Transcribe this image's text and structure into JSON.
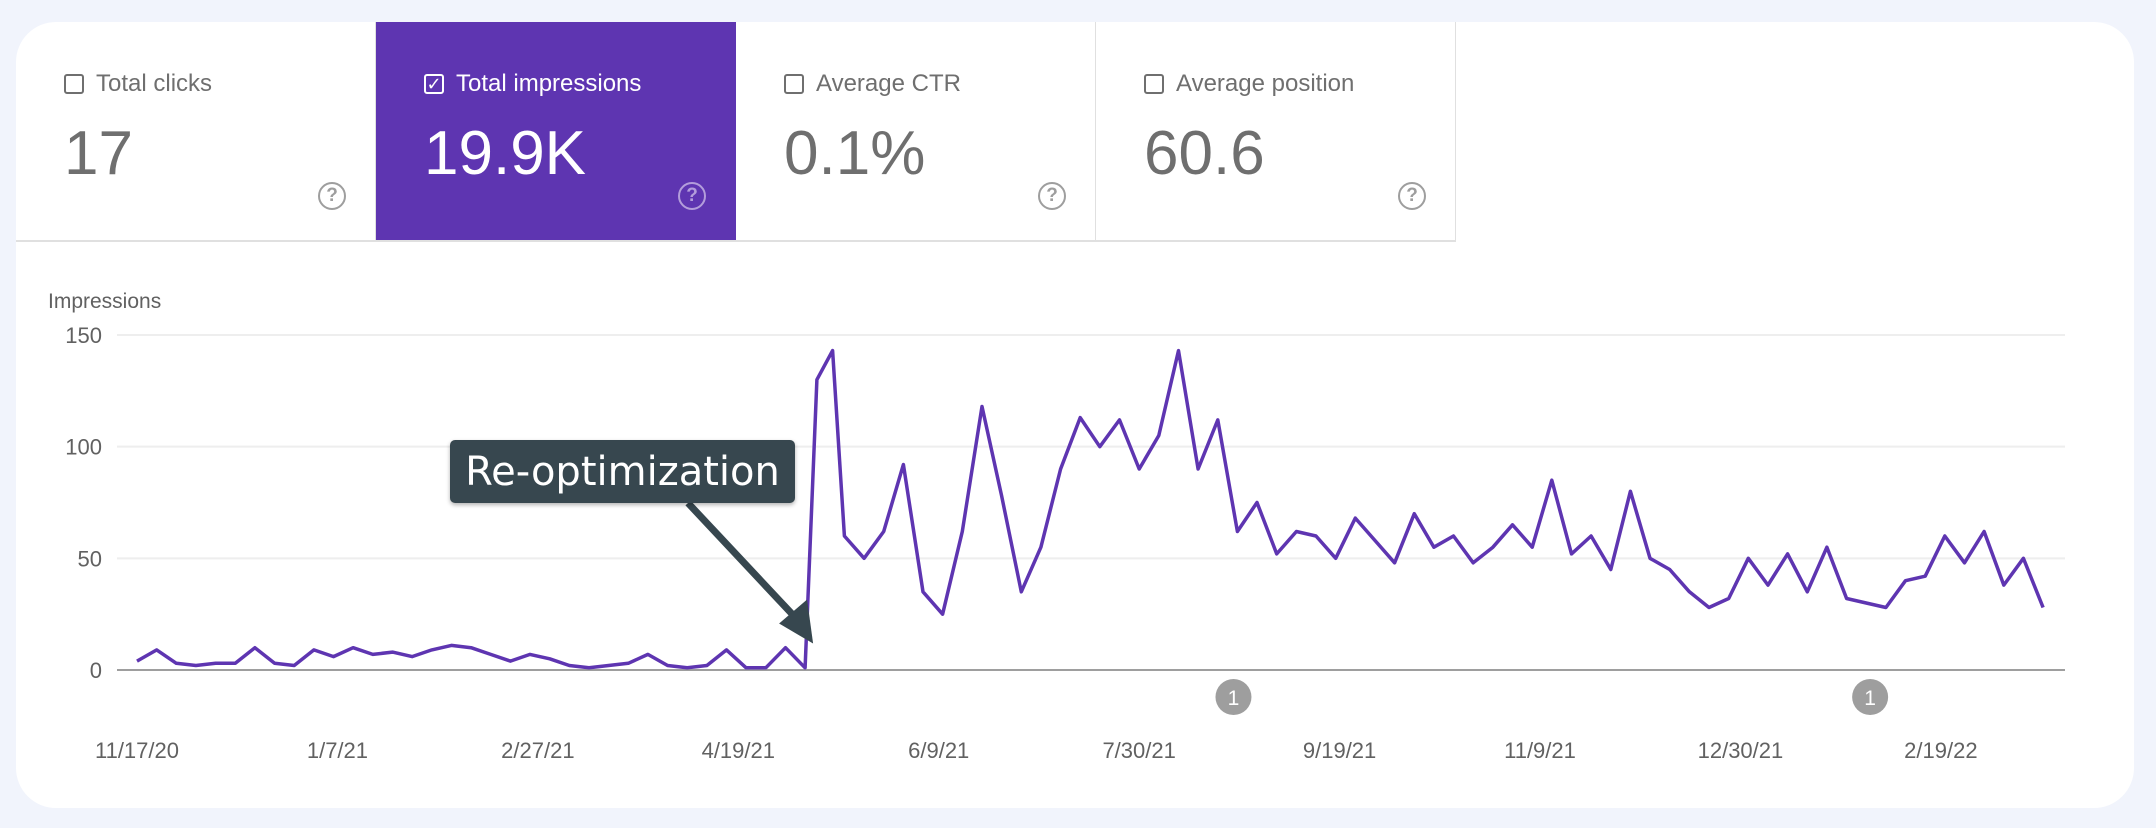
{
  "metrics": [
    {
      "label": "Total clicks",
      "value": "17",
      "checked": false
    },
    {
      "label": "Total impressions",
      "value": "19.9K",
      "checked": true
    },
    {
      "label": "Average CTR",
      "value": "0.1%",
      "checked": false
    },
    {
      "label": "Average position",
      "value": "60.6",
      "checked": false
    }
  ],
  "help_icon": "?",
  "colors": {
    "accent": "#5e35b1",
    "background": "#f1f4fc",
    "annotation": "#37474f"
  },
  "chart_data": {
    "type": "line",
    "title": "",
    "ylabel": "Impressions",
    "xlabel": "",
    "ylim": [
      0,
      150
    ],
    "yticks": [
      "0",
      "50",
      "100",
      "150"
    ],
    "xticks": [
      "11/17/20",
      "1/7/21",
      "2/27/21",
      "4/19/21",
      "6/9/21",
      "7/30/21",
      "9/19/21",
      "11/9/21",
      "12/30/21",
      "2/19/22"
    ],
    "grid": true,
    "series": [
      {
        "color": "#5e35b1",
        "points": [
          [
            "11/17/20",
            4
          ],
          [
            "11/22/20",
            9
          ],
          [
            "11/27/20",
            3
          ],
          [
            "12/2/20",
            2
          ],
          [
            "12/7/20",
            3
          ],
          [
            "12/12/20",
            3
          ],
          [
            "12/17/20",
            10
          ],
          [
            "12/22/20",
            3
          ],
          [
            "12/27/20",
            2
          ],
          [
            "1/1/21",
            9
          ],
          [
            "1/6/21",
            6
          ],
          [
            "1/11/21",
            10
          ],
          [
            "1/16/21",
            7
          ],
          [
            "1/21/21",
            8
          ],
          [
            "1/26/21",
            6
          ],
          [
            "1/31/21",
            9
          ],
          [
            "2/5/21",
            11
          ],
          [
            "2/10/21",
            10
          ],
          [
            "2/15/21",
            7
          ],
          [
            "2/20/21",
            4
          ],
          [
            "2/25/21",
            7
          ],
          [
            "3/2/21",
            5
          ],
          [
            "3/7/21",
            2
          ],
          [
            "3/12/21",
            1
          ],
          [
            "3/17/21",
            2
          ],
          [
            "3/22/21",
            3
          ],
          [
            "3/27/21",
            7
          ],
          [
            "4/1/21",
            2
          ],
          [
            "4/6/21",
            1
          ],
          [
            "4/11/21",
            2
          ],
          [
            "4/16/21",
            9
          ],
          [
            "4/21/21",
            1
          ],
          [
            "4/26/21",
            1
          ],
          [
            "5/1/21",
            10
          ],
          [
            "5/6/21",
            1
          ],
          [
            "5/9/21",
            130
          ],
          [
            "5/13/21",
            143
          ],
          [
            "5/16/21",
            60
          ],
          [
            "5/21/21",
            50
          ],
          [
            "5/26/21",
            62
          ],
          [
            "5/31/21",
            92
          ],
          [
            "6/5/21",
            35
          ],
          [
            "6/10/21",
            25
          ],
          [
            "6/15/21",
            62
          ],
          [
            "6/20/21",
            118
          ],
          [
            "6/25/21",
            78
          ],
          [
            "6/30/21",
            35
          ],
          [
            "7/5/21",
            55
          ],
          [
            "7/10/21",
            90
          ],
          [
            "7/15/21",
            113
          ],
          [
            "7/20/21",
            100
          ],
          [
            "7/25/21",
            112
          ],
          [
            "7/30/21",
            90
          ],
          [
            "8/4/21",
            105
          ],
          [
            "8/9/21",
            143
          ],
          [
            "8/14/21",
            90
          ],
          [
            "8/19/21",
            112
          ],
          [
            "8/24/21",
            62
          ],
          [
            "8/29/21",
            75
          ],
          [
            "9/3/21",
            52
          ],
          [
            "9/8/21",
            62
          ],
          [
            "9/13/21",
            60
          ],
          [
            "9/18/21",
            50
          ],
          [
            "9/23/21",
            68
          ],
          [
            "9/28/21",
            58
          ],
          [
            "10/3/21",
            48
          ],
          [
            "10/8/21",
            70
          ],
          [
            "10/13/21",
            55
          ],
          [
            "10/18/21",
            60
          ],
          [
            "10/23/21",
            48
          ],
          [
            "10/28/21",
            55
          ],
          [
            "11/2/21",
            65
          ],
          [
            "11/7/21",
            55
          ],
          [
            "11/12/21",
            85
          ],
          [
            "11/17/21",
            52
          ],
          [
            "11/22/21",
            60
          ],
          [
            "11/27/21",
            45
          ],
          [
            "12/2/21",
            80
          ],
          [
            "12/7/21",
            50
          ],
          [
            "12/12/21",
            45
          ],
          [
            "12/17/21",
            35
          ],
          [
            "12/22/21",
            28
          ],
          [
            "12/27/21",
            32
          ],
          [
            "1/1/22",
            50
          ],
          [
            "1/6/22",
            38
          ],
          [
            "1/11/22",
            52
          ],
          [
            "1/16/22",
            35
          ],
          [
            "1/21/22",
            55
          ],
          [
            "1/26/22",
            32
          ],
          [
            "1/31/22",
            30
          ],
          [
            "2/5/22",
            28
          ],
          [
            "2/10/22",
            40
          ],
          [
            "2/15/22",
            42
          ],
          [
            "2/20/22",
            60
          ],
          [
            "2/25/22",
            48
          ],
          [
            "3/2/22",
            62
          ],
          [
            "3/7/22",
            38
          ],
          [
            "3/12/22",
            50
          ],
          [
            "3/17/22",
            28
          ]
        ]
      }
    ],
    "markers": [
      {
        "date": "8/23/21",
        "label": "1"
      },
      {
        "date": "2/1/22",
        "label": "1"
      }
    ],
    "annotation": {
      "text": "Re-optimization",
      "date": "5/6/21",
      "value": 2
    }
  }
}
